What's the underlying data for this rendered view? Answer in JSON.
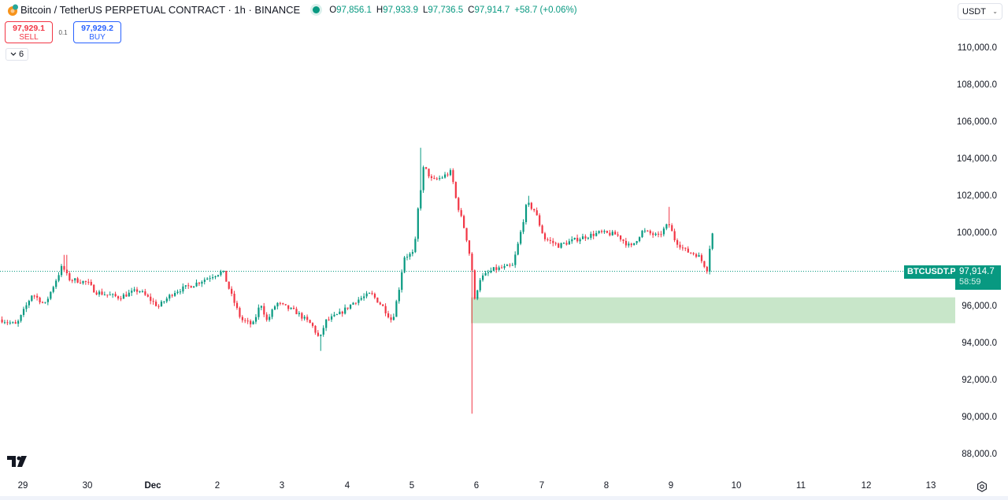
{
  "header": {
    "symbol_title": "Bitcoin / TetherUS PERPETUAL CONTRACT · 1h · BINANCE",
    "status": "market-open-dot",
    "ohlc": {
      "open_label": "O",
      "open": "97,856.1",
      "high_label": "H",
      "high": "97,933.9",
      "low_label": "L",
      "low": "97,736.5",
      "close_label": "C",
      "close": "97,914.7",
      "change": "+58.7 (+0.06%)"
    }
  },
  "trade_panel": {
    "sell_price": "97,929.1",
    "sell_label": "SELL",
    "spread": "0.1",
    "buy_price": "97,929.2",
    "buy_label": "BUY"
  },
  "indicators_toggle": {
    "icon": "chevron-down-icon",
    "count": "6"
  },
  "currency_selector": {
    "value": "USDT",
    "icon": "chevron-down-icon"
  },
  "price_scale": {
    "labels": [
      "110,000.0",
      "108,000.0",
      "106,000.0",
      "104,000.0",
      "102,000.0",
      "100,000.0",
      "96,000.0",
      "94,000.0",
      "92,000.0",
      "90,000.0",
      "88,000.0"
    ]
  },
  "current_price": {
    "symbol": "BTCUSDT.P",
    "price": "97,914.7",
    "countdown": "58:59"
  },
  "time_scale": {
    "labels": [
      "29",
      "30",
      "Dec",
      "2",
      "3",
      "4",
      "5",
      "6",
      "7",
      "8",
      "9",
      "10",
      "11",
      "12",
      "13"
    ]
  },
  "colors": {
    "up": "#089981",
    "down": "#f23645",
    "zone": "#c8e6c9",
    "price_line": "#089981"
  },
  "chart_data": {
    "type": "candlestick",
    "title": "Bitcoin / TetherUS PERPETUAL CONTRACT · 1h · BINANCE",
    "xlabel": "",
    "ylabel": "USDT",
    "ylim": [
      87500,
      111200
    ],
    "x_ticks": [
      "29",
      "30",
      "Dec",
      "2",
      "3",
      "4",
      "5",
      "6",
      "7",
      "8",
      "9",
      "10",
      "11",
      "12",
      "13"
    ],
    "y_ticks": [
      88000,
      90000,
      92000,
      94000,
      96000,
      98000,
      100000,
      102000,
      104000,
      106000,
      108000,
      110000
    ],
    "last_price": 97914.7,
    "zone": {
      "from": 95100,
      "to": 96500,
      "start_day": "6",
      "color": "#c8e6c9"
    },
    "ohlc_daily_approx": [
      {
        "day": "28 (late)",
        "open": 95000,
        "high": 96800,
        "low": 94800,
        "close": 96600
      },
      {
        "day": "29",
        "open": 96600,
        "high": 98800,
        "low": 96300,
        "close": 97400
      },
      {
        "day": "30",
        "open": 97400,
        "high": 97800,
        "low": 96400,
        "close": 96900
      },
      {
        "day": "Dec 1",
        "open": 96900,
        "high": 98200,
        "low": 96200,
        "close": 97800
      },
      {
        "day": "2",
        "open": 97800,
        "high": 98300,
        "low": 94500,
        "close": 95800
      },
      {
        "day": "3",
        "open": 95800,
        "high": 96300,
        "low": 93600,
        "close": 94700
      },
      {
        "day": "4",
        "open": 94700,
        "high": 99000,
        "low": 94300,
        "close": 98700
      },
      {
        "day": "5",
        "open": 98700,
        "high": 104600,
        "low": 98300,
        "close": 101900
      },
      {
        "day": "6",
        "open": 101900,
        "high": 102000,
        "low": 90200,
        "close": 97900
      },
      {
        "day": "7",
        "open": 97900,
        "high": 102000,
        "low": 97800,
        "close": 99600
      },
      {
        "day": "8",
        "open": 99600,
        "high": 100400,
        "low": 99000,
        "close": 99900
      },
      {
        "day": "9",
        "open": 99900,
        "high": 101400,
        "low": 97700,
        "close": 97915
      }
    ]
  }
}
